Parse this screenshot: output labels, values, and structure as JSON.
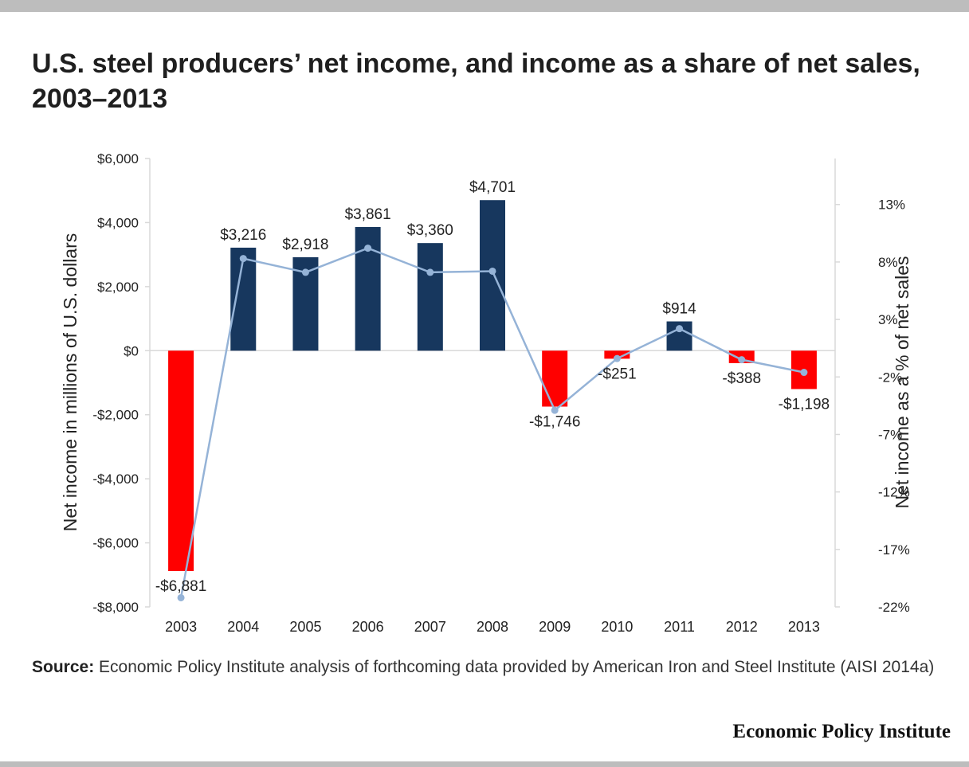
{
  "header": {
    "title": "U.S. steel producers’ net income, and income as a share of net sales, 2003–2013"
  },
  "footer": {
    "source_label": "Source:",
    "source_text": "Economic Policy Institute analysis of forthcoming data provided by American Iron and Steel Institute (AISI 2014a)",
    "brand": "Economic Policy Institute"
  },
  "colors": {
    "positive_bar": "#17375e",
    "negative_bar": "#ff0000",
    "line": "#95b3d7",
    "axis": "#d9d9d9"
  },
  "chart_data": {
    "type": "bar",
    "title": "U.S. steel producers’ net income, and income as a share of net sales, 2003–2013",
    "categories": [
      "2003",
      "2004",
      "2005",
      "2006",
      "2007",
      "2008",
      "2009",
      "2010",
      "2011",
      "2012",
      "2013"
    ],
    "series": [
      {
        "axis": "left",
        "type": "bar",
        "values": [
          -6881,
          3216,
          2918,
          3861,
          3360,
          4701,
          -1746,
          -251,
          914,
          -388,
          -1198
        ],
        "labels": [
          "-$6,881",
          "$3,216",
          "$2,918",
          "$3,861",
          "$3,360",
          "$4,701",
          "-$1,746",
          "-$251",
          "$914",
          "-$388",
          "-$1,198"
        ]
      },
      {
        "axis": "right",
        "type": "line",
        "values": [
          -21.2,
          8.3,
          7.1,
          9.2,
          7.1,
          7.2,
          -4.9,
          -0.4,
          2.2,
          -0.5,
          -1.6
        ]
      }
    ],
    "ylabel": "Net income in millions of U.S. dollars",
    "ylim": [
      -8000,
      6000
    ],
    "yticks": [
      6000,
      4000,
      2000,
      0,
      -2000,
      -4000,
      -6000,
      -8000
    ],
    "ytick_labels": [
      "$6,000",
      "$4,000",
      "$2,000",
      "$0",
      "-$2,000",
      "-$4,000",
      "-$6,000",
      "-$8,000"
    ],
    "y2label": "Net income as a % of net sales",
    "y2lim": [
      -22,
      17
    ],
    "y2ticks": [
      13,
      8,
      3,
      -2,
      -7,
      -12,
      -17,
      -22
    ],
    "y2tick_labels": [
      "13%",
      "8%",
      "3%",
      "-2%",
      "-7%",
      "-12%",
      "-17%",
      "-22%"
    ],
    "grid": false,
    "legend": "none"
  }
}
